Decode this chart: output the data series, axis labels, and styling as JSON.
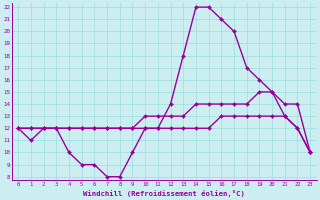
{
  "xlabel": "Windchill (Refroidissement éolien,°C)",
  "hours": [
    0,
    1,
    2,
    3,
    4,
    5,
    6,
    7,
    8,
    9,
    10,
    11,
    12,
    13,
    14,
    15,
    16,
    17,
    18,
    19,
    20,
    21,
    22,
    23
  ],
  "windchill_line": [
    12,
    11,
    12,
    12,
    10,
    9,
    9,
    8,
    8,
    10,
    12,
    12,
    14,
    18,
    22,
    22,
    21,
    20,
    17,
    16,
    15,
    13,
    12,
    10
  ],
  "temp_line": [
    12,
    12,
    12,
    12,
    12,
    12,
    12,
    12,
    12,
    12,
    13,
    13,
    13,
    13,
    14,
    14,
    14,
    14,
    14,
    15,
    15,
    14,
    14,
    10
  ],
  "linear_line": [
    12,
    12,
    12,
    12,
    12,
    12,
    12,
    12,
    12,
    12,
    12,
    12,
    12,
    12,
    12,
    12,
    13,
    13,
    13,
    13,
    13,
    13,
    12,
    10
  ],
  "ylim_min": 8,
  "ylim_max": 22,
  "yticks": [
    8,
    9,
    10,
    11,
    12,
    13,
    14,
    15,
    16,
    17,
    18,
    19,
    20,
    21,
    22
  ],
  "bg_color": "#cceef0",
  "grid_color": "#99dddd",
  "line_color": "#990099",
  "line_width": 1.0,
  "marker_size": 2.0
}
